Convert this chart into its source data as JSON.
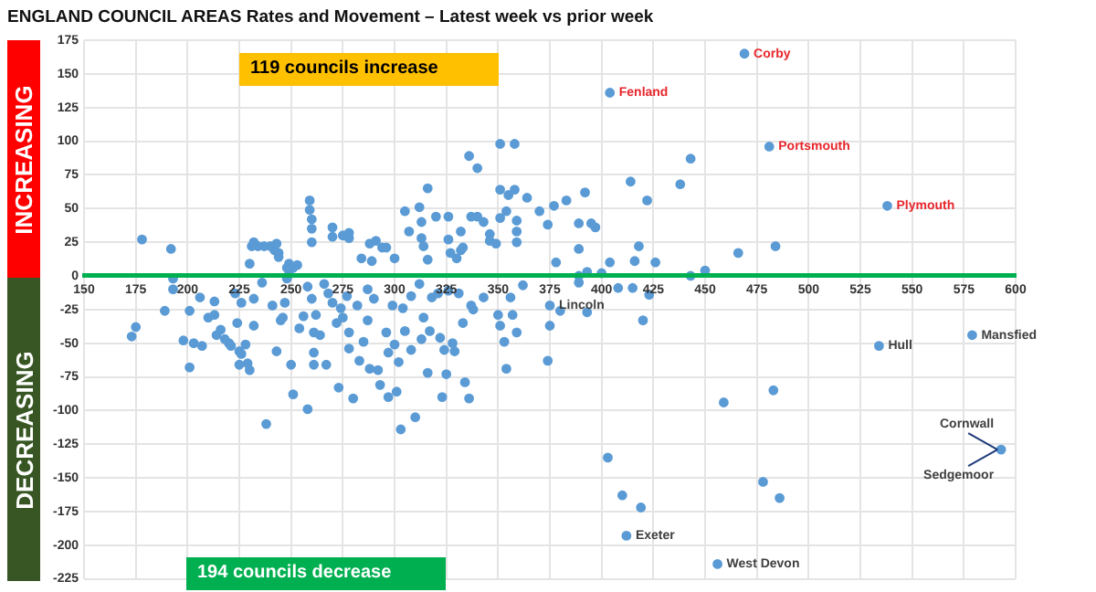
{
  "chart_data": {
    "type": "scatter",
    "title": "ENGLAND COUNCIL AREAS Rates and Movement – Latest week vs prior week",
    "series": [
      {
        "color": "#5b9bd5",
        "x": [
          178,
          192,
          193,
          230,
          231,
          232,
          234,
          237,
          240,
          242,
          243,
          244,
          244,
          248,
          249,
          251,
          253,
          248,
          259,
          259,
          260,
          260,
          260,
          270,
          270,
          275,
          278,
          278,
          284,
          288,
          289,
          291,
          294,
          296,
          300,
          305,
          307,
          312,
          313,
          313,
          314,
          316,
          316,
          320,
          326,
          326,
          327,
          330,
          332,
          332,
          333,
          336,
          340,
          337,
          340,
          343,
          346,
          346,
          349,
          351,
          351,
          351,
          354,
          355,
          358,
          358,
          359,
          359,
          359,
          364,
          370,
          469,
          404,
          481,
          538,
          443,
          414,
          438,
          422,
          392,
          383,
          377,
          374,
          389,
          395,
          397,
          389,
          418,
          378,
          404,
          416,
          426,
          466,
          484,
          450,
          443,
          393,
          400,
          389,
          173,
          175,
          189,
          193,
          198,
          201,
          201,
          203,
          207,
          206,
          210,
          213,
          213,
          214,
          216,
          218,
          220,
          221,
          223,
          224,
          225,
          225,
          226,
          226,
          228,
          229,
          230,
          232,
          232,
          236,
          238,
          241,
          243,
          245,
          246,
          247,
          249,
          250,
          251,
          254,
          256,
          258,
          258,
          260,
          262,
          261,
          261,
          261,
          264,
          266,
          267,
          268,
          270,
          272,
          273,
          274,
          275,
          277,
          278,
          278,
          280,
          282,
          283,
          285,
          287,
          287,
          288,
          290,
          292,
          293,
          296,
          297,
          297,
          299,
          300,
          301,
          302,
          303,
          304,
          305,
          308,
          308,
          310,
          312,
          313,
          314,
          316,
          317,
          318,
          321,
          322,
          323,
          324,
          325,
          326,
          328,
          329,
          331,
          333,
          334,
          336,
          337,
          338,
          343,
          350,
          351,
          353,
          354,
          356,
          357,
          359,
          362,
          375,
          380,
          393,
          375,
          374,
          420,
          389,
          408,
          415,
          423,
          534,
          579,
          459,
          483,
          593,
          403,
          410,
          419,
          412,
          456,
          478,
          486
        ],
        "values": [
          27,
          20,
          -2,
          9,
          22,
          25,
          22,
          22,
          22,
          19,
          24,
          17,
          14,
          6,
          9,
          6,
          8,
          -2,
          49,
          56,
          42,
          35,
          25,
          36,
          29,
          30,
          32,
          28,
          13,
          24,
          11,
          26,
          21,
          21,
          13,
          48,
          33,
          51,
          40,
          28,
          22,
          65,
          12,
          44,
          44,
          27,
          17,
          13,
          33,
          19,
          21,
          89,
          80,
          44,
          44,
          40,
          31,
          26,
          24,
          64,
          43,
          98,
          48,
          60,
          98,
          64,
          41,
          33,
          25,
          58,
          48,
          165,
          136,
          96,
          52,
          87,
          70,
          68,
          56,
          62,
          56,
          52,
          38,
          39,
          39,
          36,
          20,
          22,
          10,
          10,
          11,
          10,
          17,
          22,
          4,
          0,
          3,
          2,
          0,
          -45,
          -38,
          -26,
          -10,
          -48,
          -26,
          -68,
          -50,
          -52,
          -16,
          -31,
          -29,
          -19,
          -44,
          -40,
          -47,
          -50,
          -52,
          -13,
          -35,
          -56,
          -66,
          -20,
          -58,
          -51,
          -65,
          -70,
          -17,
          -37,
          -5,
          -110,
          -22,
          -56,
          -33,
          -31,
          -20,
          1,
          -66,
          -88,
          -39,
          -30,
          -8,
          -99,
          -17,
          -29,
          -42,
          -57,
          -66,
          -44,
          -6,
          -66,
          -13,
          -20,
          -35,
          -83,
          -24,
          -31,
          -15,
          -54,
          -42,
          -91,
          -22,
          -63,
          -49,
          -10,
          -33,
          -69,
          -17,
          -70,
          -81,
          -42,
          -57,
          -90,
          -22,
          -51,
          -86,
          -64,
          -114,
          -24,
          -41,
          -15,
          -55,
          -105,
          -6,
          -47,
          -31,
          -72,
          -41,
          -16,
          -13,
          -46,
          -90,
          -55,
          -73,
          -11,
          -50,
          -56,
          -13,
          -35,
          -79,
          -91,
          -22,
          -25,
          -16,
          -29,
          -37,
          -49,
          -69,
          -16,
          -29,
          -42,
          -7,
          -22,
          -26,
          -27,
          -37,
          -63,
          -33,
          -5,
          -9,
          -9,
          -14,
          -52,
          -44,
          -94,
          -85,
          -129,
          -135,
          -163,
          -172,
          -193,
          -214,
          -153,
          -165
        ]
      }
    ],
    "xlim": [
      150,
      600
    ],
    "xticks": [
      150,
      175,
      200,
      225,
      250,
      275,
      300,
      325,
      350,
      375,
      400,
      425,
      450,
      475,
      500,
      525,
      550,
      575,
      600
    ],
    "ylim": [
      -225,
      175
    ],
    "yticks": [
      -225,
      -200,
      -175,
      -150,
      -125,
      -100,
      -75,
      -50,
      -25,
      0,
      25,
      50,
      75,
      100,
      125,
      150,
      175
    ],
    "grid": true,
    "legend": false,
    "marker": "circle",
    "annotations": [
      "INCREASING",
      "DECREASING",
      "119 councils increase",
      "194 councils decrease",
      {
        "text": "Corby",
        "x": 469,
        "y": 165
      },
      {
        "text": "Fenland",
        "x": 404,
        "y": 136
      },
      {
        "text": "Portsmouth",
        "x": 481,
        "y": 96
      },
      {
        "text": "Plymouth",
        "x": 538,
        "y": 52
      },
      {
        "text": "Lincoln",
        "x": 375,
        "y": -22
      },
      {
        "text": "Hull",
        "x": 534,
        "y": -52
      },
      {
        "text": "Mansfied",
        "x": 579,
        "y": -44
      },
      {
        "text": "Cornwall",
        "x": 593,
        "y": -129
      },
      {
        "text": "Sedgemoor",
        "x": 593,
        "y": -129
      },
      {
        "text": "Exeter",
        "x": 412,
        "y": -193
      },
      {
        "text": "West Devon",
        "x": 456,
        "y": -214
      }
    ]
  }
}
